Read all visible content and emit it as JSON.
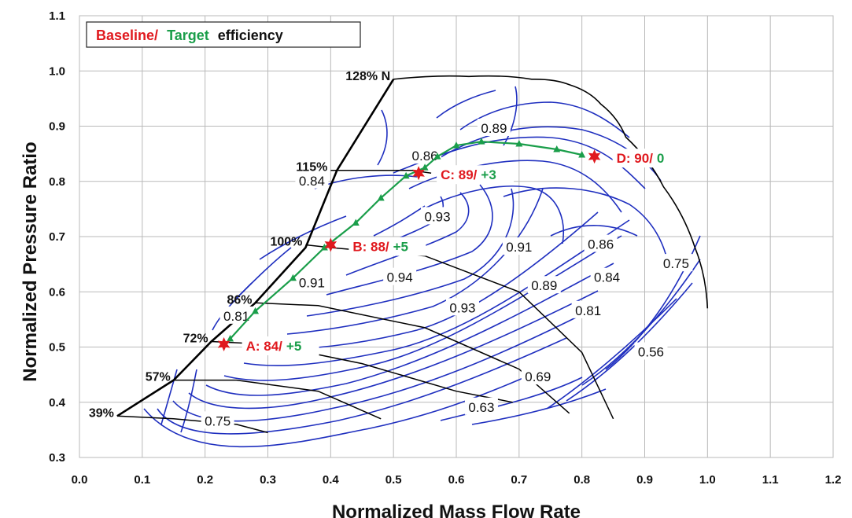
{
  "chart_data": {
    "type": "line",
    "title": "",
    "xlabel": "Normalized Mass Flow Rate",
    "ylabel": "Normalized Pressure Ratio",
    "xlim": [
      0.0,
      1.2
    ],
    "ylim": [
      0.3,
      1.1
    ],
    "x_ticks": [
      "0.0",
      "0.1",
      "0.2",
      "0.3",
      "0.4",
      "0.5",
      "0.6",
      "0.7",
      "0.8",
      "0.9",
      "1.0",
      "1.1",
      "1.2"
    ],
    "y_ticks": [
      "0.3",
      "0.4",
      "0.5",
      "0.6",
      "0.7",
      "0.8",
      "0.9",
      "1.0",
      "1.1"
    ],
    "grid": true,
    "legend": {
      "position": "top-left",
      "baseline_text": "Baseline/",
      "target_text": "Target",
      "suffix_text": "efficiency"
    },
    "colors": {
      "baseline": "#e0191e",
      "target": "#1a9e4a",
      "contour": "#1f2fbf",
      "speedline": "#000000",
      "grid": "#b9b9b9"
    },
    "surge_line": {
      "x": [
        0.06,
        0.15,
        0.21,
        0.28,
        0.36,
        0.41,
        0.5
      ],
      "y": [
        0.375,
        0.44,
        0.51,
        0.58,
        0.68,
        0.82,
        0.985
      ]
    },
    "choke_line": {
      "x": [
        0.5,
        0.62,
        0.72,
        0.78,
        0.83,
        0.87,
        0.93,
        0.98,
        1.0
      ],
      "y": [
        0.985,
        0.99,
        0.985,
        0.975,
        0.94,
        0.88,
        0.79,
        0.68,
        0.57
      ]
    },
    "speed_lines": [
      {
        "label": "128% N",
        "x": [
          0.5
        ],
        "y": [
          0.985
        ]
      },
      {
        "label": "115%",
        "x": [
          0.4,
          0.53,
          0.56
        ],
        "y": [
          0.82,
          0.82,
          0.815
        ]
      },
      {
        "label": "100%",
        "x": [
          0.36,
          0.4,
          0.55,
          0.7,
          0.8,
          0.85
        ],
        "y": [
          0.685,
          0.68,
          0.665,
          0.6,
          0.49,
          0.37
        ]
      },
      {
        "label": "86%",
        "x": [
          0.28,
          0.38,
          0.55,
          0.7,
          0.78
        ],
        "y": [
          0.58,
          0.575,
          0.535,
          0.46,
          0.38
        ]
      },
      {
        "label": "72%",
        "x": [
          0.21,
          0.3,
          0.45,
          0.6,
          0.69
        ],
        "y": [
          0.51,
          0.505,
          0.47,
          0.42,
          0.4
        ]
      },
      {
        "label": "57%",
        "x": [
          0.15,
          0.25,
          0.38,
          0.48
        ],
        "y": [
          0.44,
          0.44,
          0.42,
          0.37
        ]
      },
      {
        "label": "39%",
        "x": [
          0.06,
          0.15,
          0.25,
          0.3
        ],
        "y": [
          0.375,
          0.37,
          0.36,
          0.345
        ]
      }
    ],
    "baseline_points": [
      {
        "name": "A",
        "x": 0.23,
        "y": 0.505,
        "label": "A: 84/",
        "delta": "+5"
      },
      {
        "name": "B",
        "x": 0.4,
        "y": 0.685,
        "label": "B: 88/",
        "delta": "+5"
      },
      {
        "name": "C",
        "x": 0.54,
        "y": 0.815,
        "label": "C: 89/",
        "delta": "+3"
      },
      {
        "name": "D",
        "x": 0.82,
        "y": 0.845,
        "label": "D: 90/",
        "delta": "0"
      }
    ],
    "target_line": {
      "x": [
        0.24,
        0.28,
        0.34,
        0.39,
        0.44,
        0.48,
        0.52,
        0.55,
        0.57,
        0.6,
        0.64,
        0.7,
        0.76,
        0.8
      ],
      "y": [
        0.515,
        0.565,
        0.625,
        0.68,
        0.725,
        0.77,
        0.81,
        0.825,
        0.845,
        0.865,
        0.872,
        0.868,
        0.858,
        0.848
      ]
    },
    "contour_labels": [
      {
        "text": "0.89",
        "x": 0.66,
        "y": 0.895
      },
      {
        "text": "0.86",
        "x": 0.55,
        "y": 0.845
      },
      {
        "text": "0.84",
        "x": 0.37,
        "y": 0.8
      },
      {
        "text": "0.93",
        "x": 0.57,
        "y": 0.735
      },
      {
        "text": "0.91",
        "x": 0.7,
        "y": 0.68
      },
      {
        "text": "0.86",
        "x": 0.83,
        "y": 0.685
      },
      {
        "text": "0.94",
        "x": 0.51,
        "y": 0.625
      },
      {
        "text": "0.91",
        "x": 0.37,
        "y": 0.615
      },
      {
        "text": "0.84",
        "x": 0.84,
        "y": 0.625
      },
      {
        "text": "0.75",
        "x": 0.95,
        "y": 0.65
      },
      {
        "text": "0.89",
        "x": 0.74,
        "y": 0.61
      },
      {
        "text": "0.93",
        "x": 0.61,
        "y": 0.57
      },
      {
        "text": "0.81",
        "x": 0.81,
        "y": 0.565
      },
      {
        "text": "0.81",
        "x": 0.25,
        "y": 0.555
      },
      {
        "text": "0.56",
        "x": 0.91,
        "y": 0.49
      },
      {
        "text": "0.69",
        "x": 0.73,
        "y": 0.445
      },
      {
        "text": "0.63",
        "x": 0.64,
        "y": 0.39
      },
      {
        "text": "0.75",
        "x": 0.22,
        "y": 0.365
      }
    ]
  }
}
